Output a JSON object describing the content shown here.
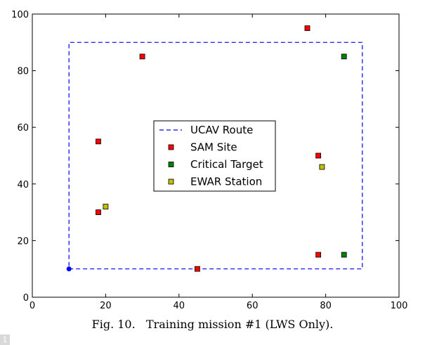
{
  "chart_data": {
    "type": "scatter",
    "title": "",
    "xlabel": "",
    "ylabel": "",
    "xlim": [
      0,
      100
    ],
    "ylim": [
      0,
      100
    ],
    "xticks": [
      0,
      20,
      40,
      60,
      80,
      100
    ],
    "yticks": [
      0,
      20,
      40,
      60,
      80,
      100
    ],
    "grid": false,
    "legend_position": "center",
    "series": [
      {
        "name": "UCAV Route",
        "kind": "dashed-line",
        "color": "#0000ff",
        "x": [
          10,
          90,
          90,
          10,
          10
        ],
        "y": [
          10,
          10,
          90,
          90,
          10
        ]
      },
      {
        "name": "SAM Site",
        "kind": "square-marker",
        "color": "#ff0000",
        "points": [
          [
            75,
            95
          ],
          [
            30,
            85
          ],
          [
            18,
            55
          ],
          [
            78,
            50
          ],
          [
            18,
            30
          ],
          [
            78,
            15
          ],
          [
            45,
            10
          ]
        ]
      },
      {
        "name": "Critical Target",
        "kind": "square-marker",
        "color": "#008000",
        "points": [
          [
            85,
            85
          ],
          [
            85,
            15
          ]
        ]
      },
      {
        "name": "EWAR Station",
        "kind": "square-marker",
        "color": "#bfbf00",
        "points": [
          [
            79,
            46
          ],
          [
            20,
            32
          ]
        ]
      }
    ],
    "start_point": {
      "x": 10,
      "y": 10,
      "color": "#0000ff"
    }
  },
  "caption": "Fig. 10.   Training mission #1 (LWS Only).",
  "page_number": "1"
}
